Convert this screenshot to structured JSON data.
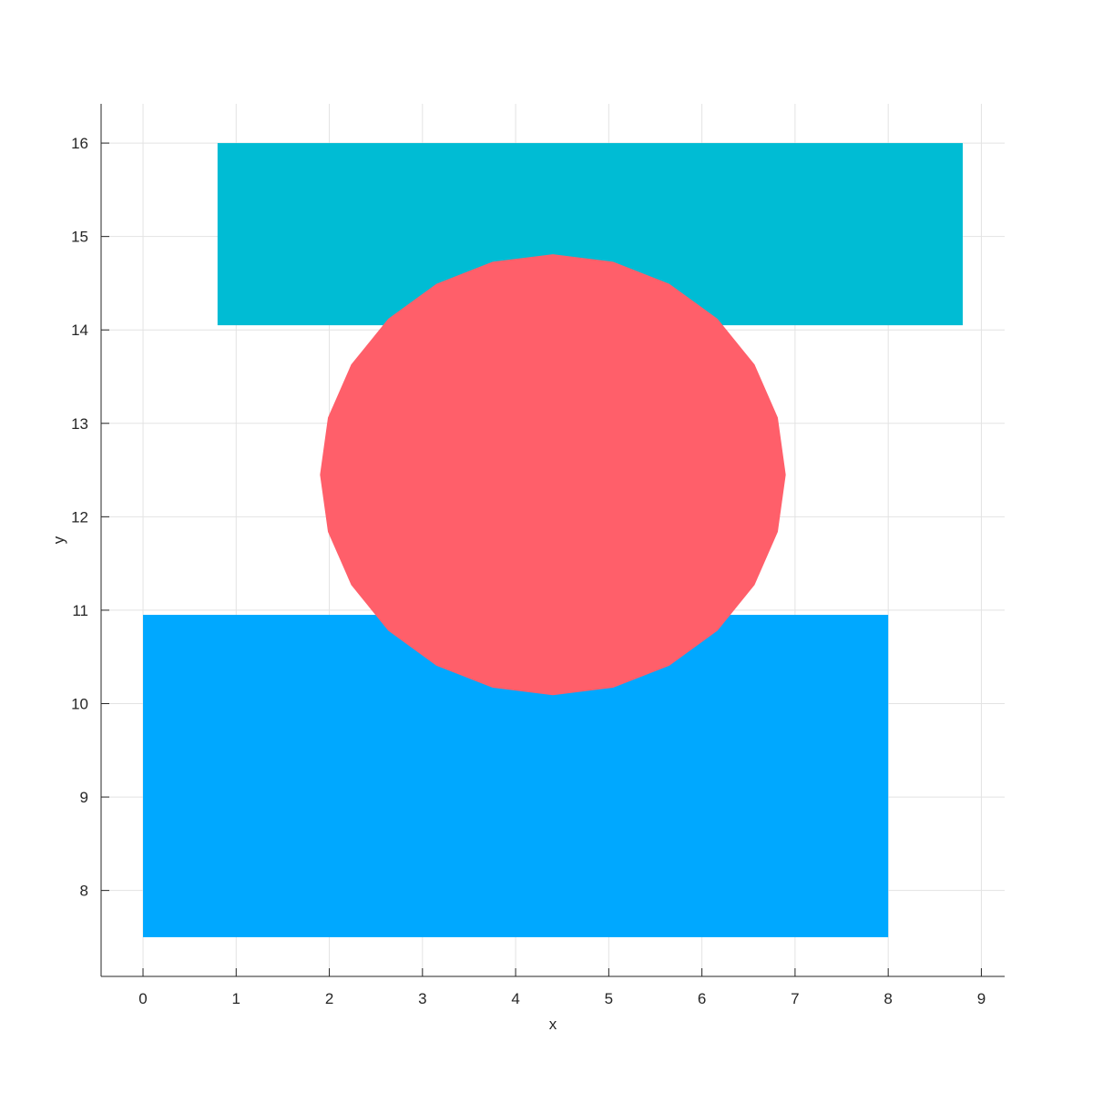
{
  "chart_data": {
    "type": "area",
    "xlabel": "x",
    "ylabel": "y",
    "xlim": [
      -0.45,
      9.25
    ],
    "ylim": [
      7.08,
      16.42
    ],
    "x_ticks": [
      0,
      1,
      2,
      3,
      4,
      5,
      6,
      7,
      8,
      9
    ],
    "y_ticks": [
      8,
      9,
      10,
      11,
      12,
      13,
      14,
      15,
      16
    ],
    "grid": true,
    "shapes": [
      {
        "kind": "rectangle",
        "x": [
          0,
          8
        ],
        "y": [
          7.5,
          10.95
        ],
        "color": "#00a8ff"
      },
      {
        "kind": "rectangle",
        "x": [
          0.8,
          8.8
        ],
        "y": [
          14.05,
          16.0
        ],
        "color": "#00bcd4"
      },
      {
        "kind": "polygon-circle",
        "center": [
          4.4,
          12.45
        ],
        "rx": 2.5,
        "ry": 2.36,
        "vertices": 24,
        "color": "#ff5f6a"
      }
    ]
  }
}
